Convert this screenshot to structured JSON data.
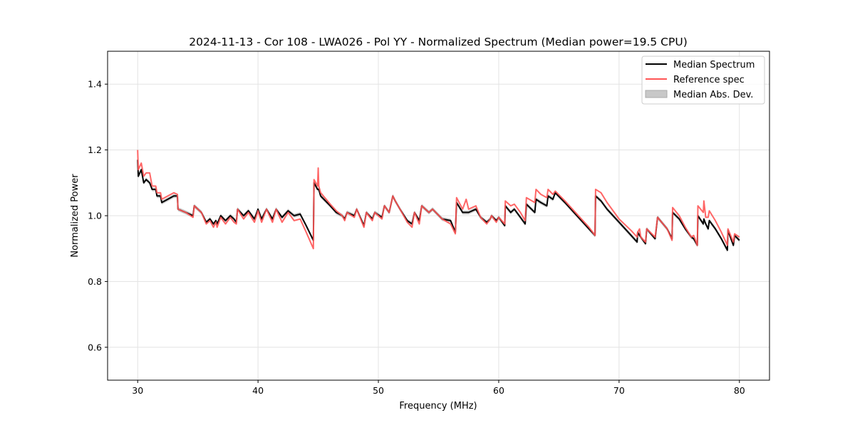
{
  "chart_data": {
    "type": "line",
    "title": "2024-11-13 - Cor 108 - LWA026 - Pol YY - Normalized Spectrum (Median power=19.5 CPU)",
    "xlabel": "Frequency (MHz)",
    "ylabel": "Normalized Power",
    "xlim": [
      27.5,
      82.5
    ],
    "ylim": [
      0.5,
      1.5
    ],
    "xticks": [
      30,
      40,
      50,
      60,
      70,
      80
    ],
    "xtick_labels": [
      "30",
      "40",
      "50",
      "60",
      "70",
      "80"
    ],
    "yticks": [
      0.6,
      0.8,
      1.0,
      1.2,
      1.4
    ],
    "ytick_labels": [
      "0.6",
      "0.8",
      "1.0",
      "1.2",
      "1.4"
    ],
    "grid": true,
    "legend_position": "top-right",
    "legend": [
      "Median Spectrum",
      "Reference spec",
      "Median Abs. Dev."
    ],
    "colors": {
      "median": "#000000",
      "reference": "#ff5555",
      "mad": "#999999"
    },
    "mad_halfwidth": 0.006,
    "x": [
      30.0,
      30.05,
      30.3,
      30.5,
      30.7,
      31.0,
      31.2,
      31.5,
      31.6,
      31.9,
      32.0,
      32.5,
      33.0,
      33.3,
      33.35,
      34.0,
      34.6,
      34.7,
      35.3,
      35.7,
      36.0,
      36.3,
      36.5,
      36.6,
      36.9,
      37.3,
      37.7,
      38.0,
      38.2,
      38.3,
      38.8,
      39.2,
      39.7,
      40.0,
      40.3,
      40.7,
      41.2,
      41.5,
      42.0,
      42.5,
      43.0,
      43.5,
      44.0,
      44.6,
      44.65,
      44.95,
      45.0,
      45.05,
      45.2,
      46.0,
      46.5,
      47.0,
      47.2,
      47.4,
      48.0,
      48.2,
      48.8,
      49.0,
      49.5,
      49.7,
      50.3,
      50.5,
      50.9,
      51.2,
      51.4,
      51.8,
      52.4,
      52.8,
      53.0,
      53.4,
      53.6,
      54.2,
      54.5,
      55.3,
      56.0,
      56.4,
      56.5,
      57.0,
      57.3,
      57.5,
      58.1,
      58.5,
      59.0,
      59.3,
      59.4,
      59.8,
      60.0,
      60.5,
      60.55,
      61.0,
      61.3,
      61.8,
      62.2,
      62.3,
      63.0,
      63.1,
      63.5,
      64.0,
      64.1,
      64.5,
      64.7,
      65.5,
      66.5,
      67.5,
      68.0,
      68.05,
      68.5,
      69.0,
      70.0,
      71.0,
      71.5,
      71.55,
      71.7,
      71.8,
      72.2,
      72.3,
      73.0,
      73.2,
      74.0,
      74.4,
      74.45,
      75.0,
      75.5,
      76.0,
      76.2,
      76.5,
      76.55,
      77.0,
      77.05,
      77.2,
      77.4,
      77.5,
      78.0,
      78.5,
      79.0,
      79.05,
      79.5,
      79.6,
      80.0
    ],
    "series": [
      {
        "name": "Median Spectrum",
        "values": [
          1.17,
          1.12,
          1.14,
          1.1,
          1.11,
          1.1,
          1.08,
          1.08,
          1.06,
          1.06,
          1.04,
          1.05,
          1.06,
          1.06,
          1.02,
          1.01,
          1.0,
          1.03,
          1.01,
          0.98,
          0.99,
          0.975,
          0.985,
          0.975,
          1.0,
          0.985,
          1.0,
          0.99,
          0.98,
          1.02,
          1.0,
          1.015,
          0.99,
          1.02,
          0.99,
          1.02,
          0.99,
          1.02,
          0.995,
          1.015,
          1.0,
          1.005,
          0.97,
          0.925,
          1.1,
          1.08,
          1.08,
          1.08,
          1.06,
          1.03,
          1.01,
          1.0,
          0.99,
          1.01,
          1.0,
          1.02,
          0.97,
          1.01,
          0.99,
          1.01,
          0.995,
          1.03,
          1.01,
          1.06,
          1.045,
          1.02,
          0.985,
          0.975,
          1.01,
          0.985,
          1.03,
          1.01,
          1.02,
          0.99,
          0.985,
          0.95,
          1.04,
          1.01,
          1.01,
          1.01,
          1.02,
          0.995,
          0.98,
          0.99,
          1.0,
          0.985,
          0.995,
          0.97,
          1.03,
          1.01,
          1.02,
          0.995,
          0.975,
          1.035,
          1.01,
          1.05,
          1.04,
          1.03,
          1.06,
          1.05,
          1.07,
          1.04,
          1.0,
          0.96,
          0.94,
          1.06,
          1.045,
          1.02,
          0.98,
          0.94,
          0.92,
          0.95,
          0.94,
          0.935,
          0.915,
          0.96,
          0.93,
          0.995,
          0.96,
          0.93,
          1.01,
          0.99,
          0.96,
          0.935,
          0.93,
          0.91,
          1.0,
          0.975,
          0.99,
          0.975,
          0.96,
          0.985,
          0.96,
          0.93,
          0.895,
          0.955,
          0.91,
          0.94,
          0.925
        ]
      },
      {
        "name": "Reference spec",
        "values": [
          1.2,
          1.14,
          1.16,
          1.12,
          1.13,
          1.13,
          1.09,
          1.09,
          1.07,
          1.07,
          1.05,
          1.06,
          1.07,
          1.065,
          1.02,
          1.01,
          0.995,
          1.03,
          1.01,
          0.975,
          0.985,
          0.965,
          0.98,
          0.965,
          0.995,
          0.975,
          0.995,
          0.98,
          0.975,
          1.02,
          0.99,
          1.01,
          0.98,
          1.015,
          0.98,
          1.02,
          0.98,
          1.02,
          0.98,
          1.01,
          0.985,
          0.99,
          0.95,
          0.9,
          1.11,
          1.09,
          1.145,
          1.09,
          1.07,
          1.035,
          1.015,
          1.0,
          0.985,
          1.01,
          0.995,
          1.02,
          0.965,
          1.01,
          0.985,
          1.01,
          0.99,
          1.03,
          1.01,
          1.06,
          1.045,
          1.02,
          0.98,
          0.965,
          1.01,
          0.975,
          1.03,
          1.01,
          1.02,
          0.99,
          0.975,
          0.945,
          1.055,
          1.02,
          1.05,
          1.02,
          1.03,
          0.995,
          0.975,
          0.99,
          1.0,
          0.98,
          0.995,
          0.975,
          1.045,
          1.03,
          1.035,
          1.01,
          0.985,
          1.055,
          1.04,
          1.08,
          1.065,
          1.055,
          1.08,
          1.065,
          1.075,
          1.045,
          1.005,
          0.965,
          0.94,
          1.08,
          1.07,
          1.04,
          0.99,
          0.955,
          0.935,
          0.95,
          0.96,
          0.935,
          0.92,
          0.96,
          0.935,
          0.995,
          0.96,
          0.925,
          1.025,
          1.0,
          0.965,
          0.935,
          0.94,
          0.91,
          1.03,
          1.01,
          1.045,
          0.995,
          0.995,
          1.015,
          0.985,
          0.95,
          0.91,
          0.96,
          0.92,
          0.945,
          0.935
        ]
      }
    ]
  }
}
